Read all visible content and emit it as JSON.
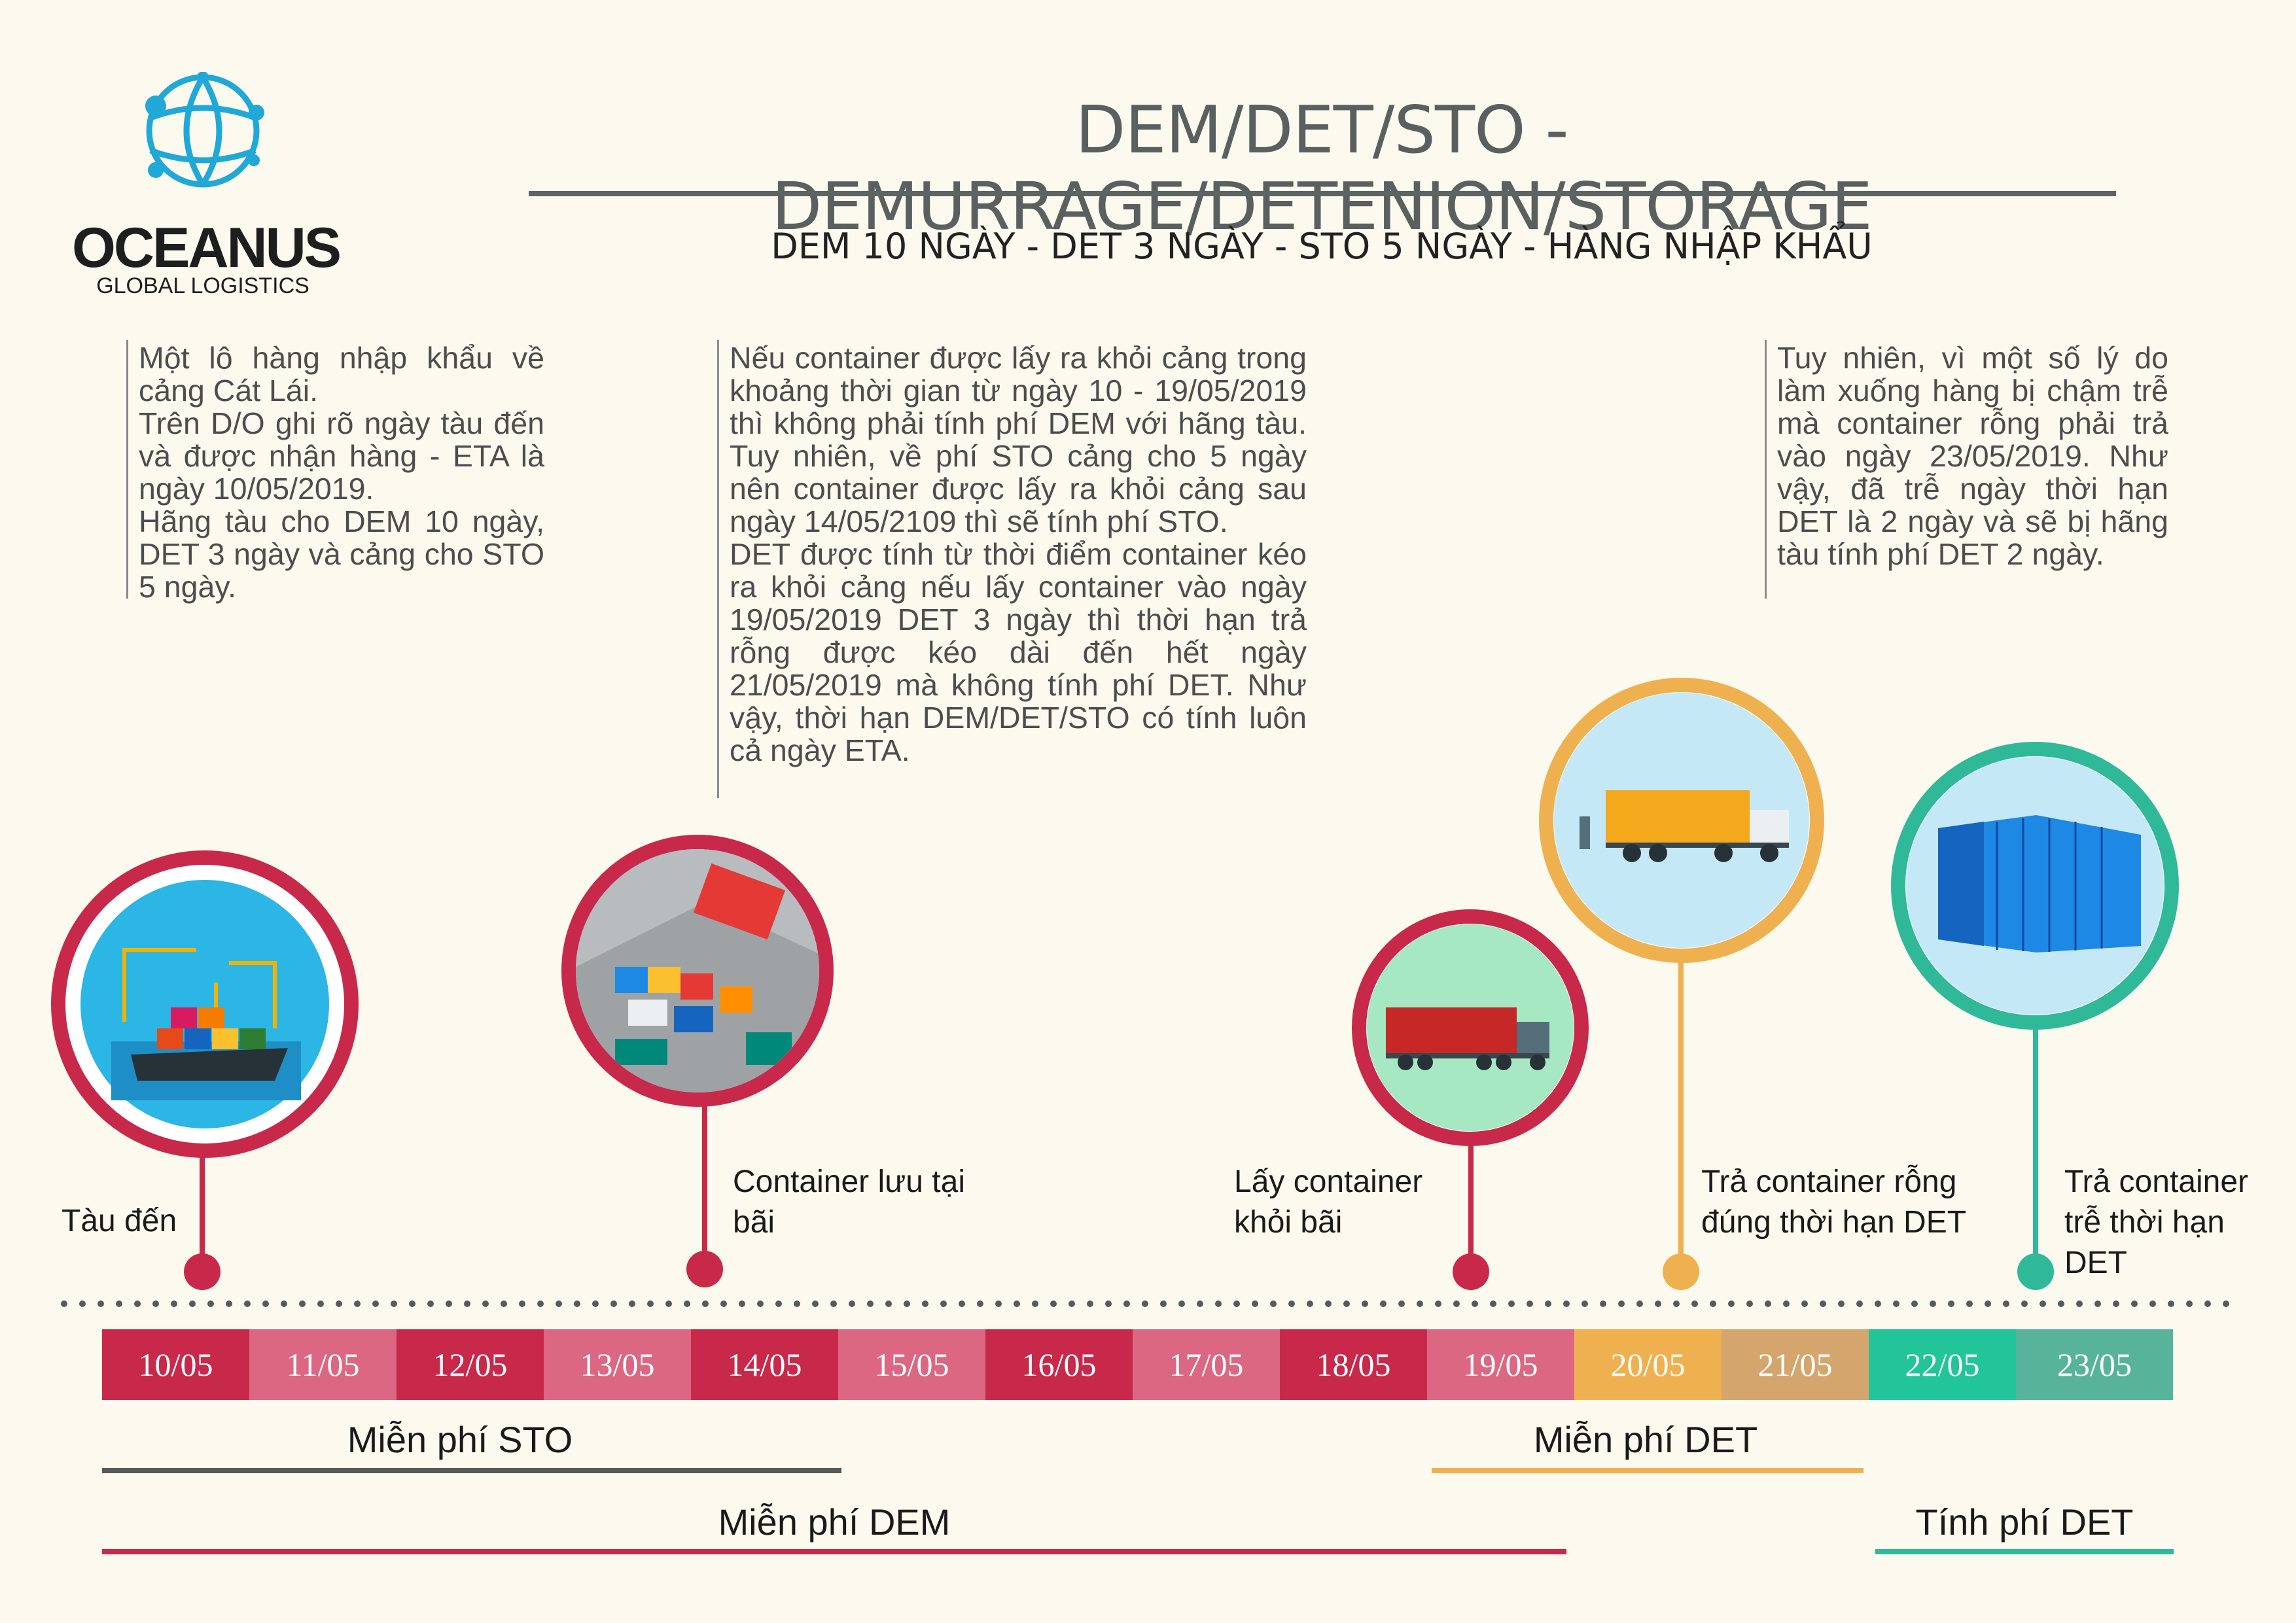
{
  "logo": {
    "name": "OCEANUS",
    "tagline": "GLOBAL LOGISTICS",
    "color": "#1fa8d8"
  },
  "header": {
    "title": "DEM/DET/STO - DEMURRAGE/DETENION/STORAGE",
    "subtitle": "DEM 10 NGÀY - DET 3 NGÀY - STO 5 NGÀY - HÀNG NHẬP KHẨU"
  },
  "paragraphs": {
    "left": [
      "Một lô hàng nhập khẩu về cảng Cát Lái.",
      "Trên D/O ghi rõ ngày tàu đến và được nhận hàng - ETA là  ngày 10/05/2019.",
      "Hãng tàu cho DEM 10 ngày, DET 3 ngày và cảng cho STO 5 ngày."
    ],
    "middle": [
      "Nếu container được lấy ra khỏi cảng trong khoảng thời gian từ  ngày 10 - 19/05/2019 thì không phải tính phí DEM với hãng tàu. Tuy nhiên, về phí STO cảng cho 5 ngày nên container được lấy ra khỏi cảng sau ngày 14/05/2109 thì sẽ tính phí STO.",
      "DET được tính từ thời điểm container kéo ra khỏi cảng nếu lấy container vào ngày 19/05/2019 DET 3 ngày thì thời hạn trả rỗng được kéo dài đến hết ngày 21/05/2019 mà không tính phí DET. Như vậy, thời hạn DEM/DET/STO có tính luôn cả ngày ETA."
    ],
    "right": [
      "Tuy nhiên, vì một số lý do làm xuống hàng bị chậm trễ mà container rỗng phải trả vào ngày 23/05/2019. Như vậy, đã trễ ngày thời hạn DET là 2 ngày và sẽ bị hãng tàu tính phí DET 2 ngày."
    ]
  },
  "milestones": [
    {
      "label": "Tàu đến",
      "color": "#c8294a",
      "icon": "ship-port-icon"
    },
    {
      "label": "Container lưu tại bãi",
      "color": "#c8294a",
      "icon": "container-yard-icon"
    },
    {
      "label": "Lấy container khỏi bãi",
      "color": "#c8294a",
      "icon": "red-truck-icon"
    },
    {
      "label": "Trả container rỗng đúng thời hạn DET",
      "color": "#efb14f",
      "icon": "yellow-truck-icon"
    },
    {
      "label": "Trả container trễ thời hạn DET",
      "color": "#2fb999",
      "icon": "blue-container-icon"
    }
  ],
  "dates": [
    {
      "label": "10/05",
      "color": "#c8294a"
    },
    {
      "label": "11/05",
      "color": "#dc6782"
    },
    {
      "label": "12/05",
      "color": "#c8294a"
    },
    {
      "label": "13/05",
      "color": "#dc6782"
    },
    {
      "label": "14/05",
      "color": "#c8294a"
    },
    {
      "label": "15/05",
      "color": "#dc6782"
    },
    {
      "label": "16/05",
      "color": "#c8294a"
    },
    {
      "label": "17/05",
      "color": "#dc6782"
    },
    {
      "label": "18/05",
      "color": "#c8294a"
    },
    {
      "label": "19/05",
      "color": "#dc6782"
    },
    {
      "label": "20/05",
      "color": "#efb14f"
    },
    {
      "label": "21/05",
      "color": "#d4a66e"
    },
    {
      "label": "22/05",
      "color": "#22c49a"
    },
    {
      "label": "23/05",
      "color": "#57b49a"
    }
  ],
  "ranges": {
    "free_sto": {
      "label": "Miễn phí STO",
      "color": "#555a5a"
    },
    "free_det": {
      "label": "Miễn phí DET",
      "color": "#efb14f"
    },
    "free_dem": {
      "label": "Miễn phí DEM",
      "color": "#c8294a"
    },
    "charge_det": {
      "label": "Tính phí DET",
      "color": "#2fb999"
    }
  }
}
